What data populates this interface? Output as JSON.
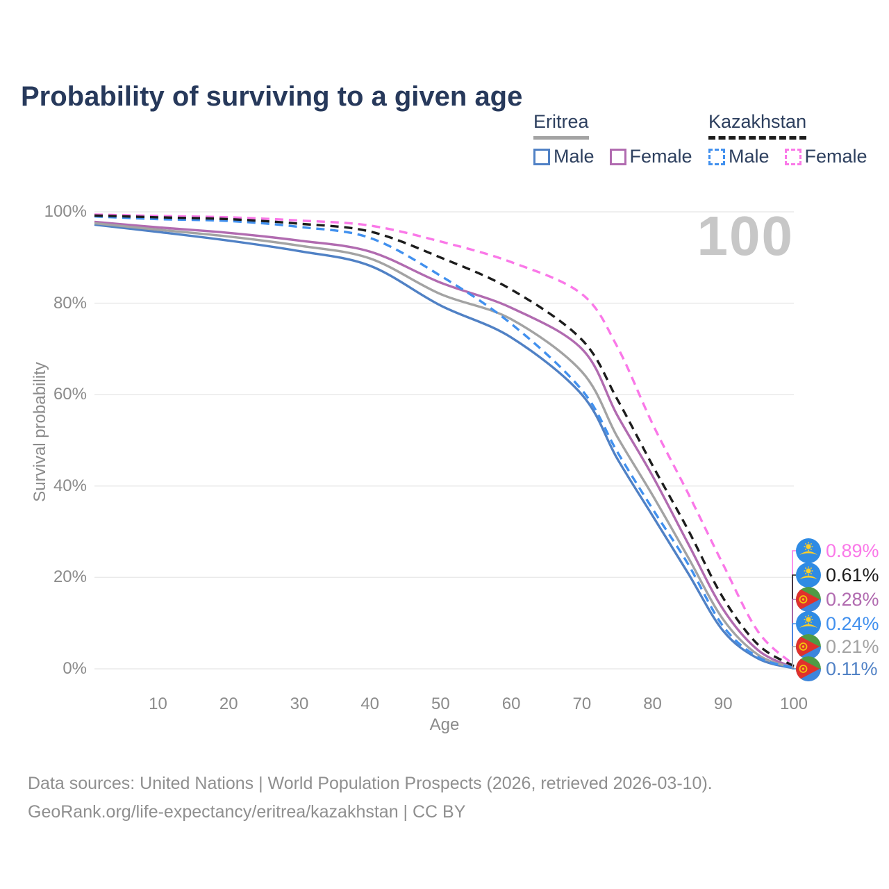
{
  "title": "Probability of surviving to a given age",
  "watermark": "100",
  "legend": {
    "groups": [
      {
        "name": "Eritrea",
        "line_style": "solid",
        "underline_color": "#a3a3a3",
        "items": [
          {
            "label": "Male",
            "color": "#5081c5",
            "dashed": false
          },
          {
            "label": "Female",
            "color": "#b16bb0",
            "dashed": false
          }
        ]
      },
      {
        "name": "Kazakhstan",
        "line_style": "dashed",
        "underline_color": "#1c1c1c",
        "items": [
          {
            "label": "Male",
            "color": "#4190ee",
            "dashed": true
          },
          {
            "label": "Female",
            "color": "#fa78e8",
            "dashed": true
          }
        ]
      }
    ]
  },
  "chart_data": {
    "type": "line",
    "title": "Probability of surviving to a given age",
    "xlabel": "Age",
    "ylabel": "Survival probability",
    "xlim": [
      1,
      100
    ],
    "ylim": [
      0,
      100
    ],
    "grid": "horizontal",
    "x_ticks": [
      10,
      20,
      30,
      40,
      50,
      60,
      70,
      80,
      90,
      100
    ],
    "y_ticks": [
      0,
      20,
      40,
      60,
      80,
      100
    ],
    "y_tick_labels": [
      "0%",
      "20%",
      "40%",
      "60%",
      "80%",
      "100%"
    ],
    "x": [
      1,
      10,
      20,
      30,
      40,
      50,
      60,
      70,
      75,
      80,
      85,
      90,
      95,
      100
    ],
    "series": [
      {
        "name": "Eritrea Male",
        "color": "#5081c5",
        "dash": false,
        "values": [
          97.2,
          95.6,
          93.7,
          91.4,
          88.2,
          79.5,
          72.5,
          60.0,
          46.0,
          33.5,
          21.0,
          8.3,
          2.2,
          0.11
        ]
      },
      {
        "name": "Eritrea Female",
        "color": "#b16bb0",
        "dash": false,
        "values": [
          97.8,
          96.6,
          95.4,
          93.7,
          91.3,
          84.5,
          79.0,
          70.0,
          55.5,
          42.2,
          27.5,
          13.0,
          4.0,
          0.28
        ]
      },
      {
        "name": "Eritrea Both sexes",
        "color": "#a3a3a3",
        "dash": false,
        "values": [
          97.5,
          96.1,
          94.6,
          92.6,
          89.8,
          82.0,
          76.5,
          65.0,
          50.8,
          38.0,
          24.5,
          10.8,
          3.0,
          0.21
        ]
      },
      {
        "name": "Kazakhstan Male",
        "color": "#4190ee",
        "dash": true,
        "values": [
          99.0,
          98.4,
          98.0,
          96.7,
          94.3,
          86.0,
          75.5,
          61.0,
          47.5,
          35.0,
          23.0,
          9.3,
          2.5,
          0.24
        ]
      },
      {
        "name": "Kazakhstan Female",
        "color": "#fa78e8",
        "dash": true,
        "values": [
          99.4,
          99.1,
          98.8,
          98.1,
          97.0,
          93.5,
          89.0,
          82.0,
          70.5,
          53.6,
          38.5,
          22.8,
          8.0,
          0.89
        ]
      },
      {
        "name": "Kazakhstan Both sexes",
        "color": "#1c1c1c",
        "dash": true,
        "values": [
          99.2,
          98.8,
          98.4,
          97.4,
          95.7,
          90.0,
          83.0,
          72.0,
          59.0,
          44.5,
          30.5,
          15.5,
          5.2,
          0.61
        ]
      }
    ],
    "end_labels": [
      {
        "value": "0.89%",
        "color": "#fa78e8",
        "flag": "kazakhstan",
        "series": "Kazakhstan Female"
      },
      {
        "value": "0.61%",
        "color": "#1c1c1c",
        "flag": "kazakhstan",
        "series": "Kazakhstan Both sexes"
      },
      {
        "value": "0.28%",
        "color": "#b16bb0",
        "flag": "eritrea",
        "series": "Eritrea Female"
      },
      {
        "value": "0.24%",
        "color": "#4190ee",
        "flag": "kazakhstan",
        "series": "Kazakhstan Male"
      },
      {
        "value": "0.21%",
        "color": "#a3a3a3",
        "flag": "eritrea",
        "series": "Eritrea Both sexes"
      },
      {
        "value": "0.11%",
        "color": "#5081c5",
        "flag": "eritrea",
        "series": "Eritrea Male"
      }
    ]
  },
  "footer": {
    "line1": "Data sources: United Nations | World Population Prospects (2026, retrieved 2026-03-10).",
    "line2": "GeoRank.org/life-expectancy/eritrea/kazakhstan | CC BY"
  }
}
